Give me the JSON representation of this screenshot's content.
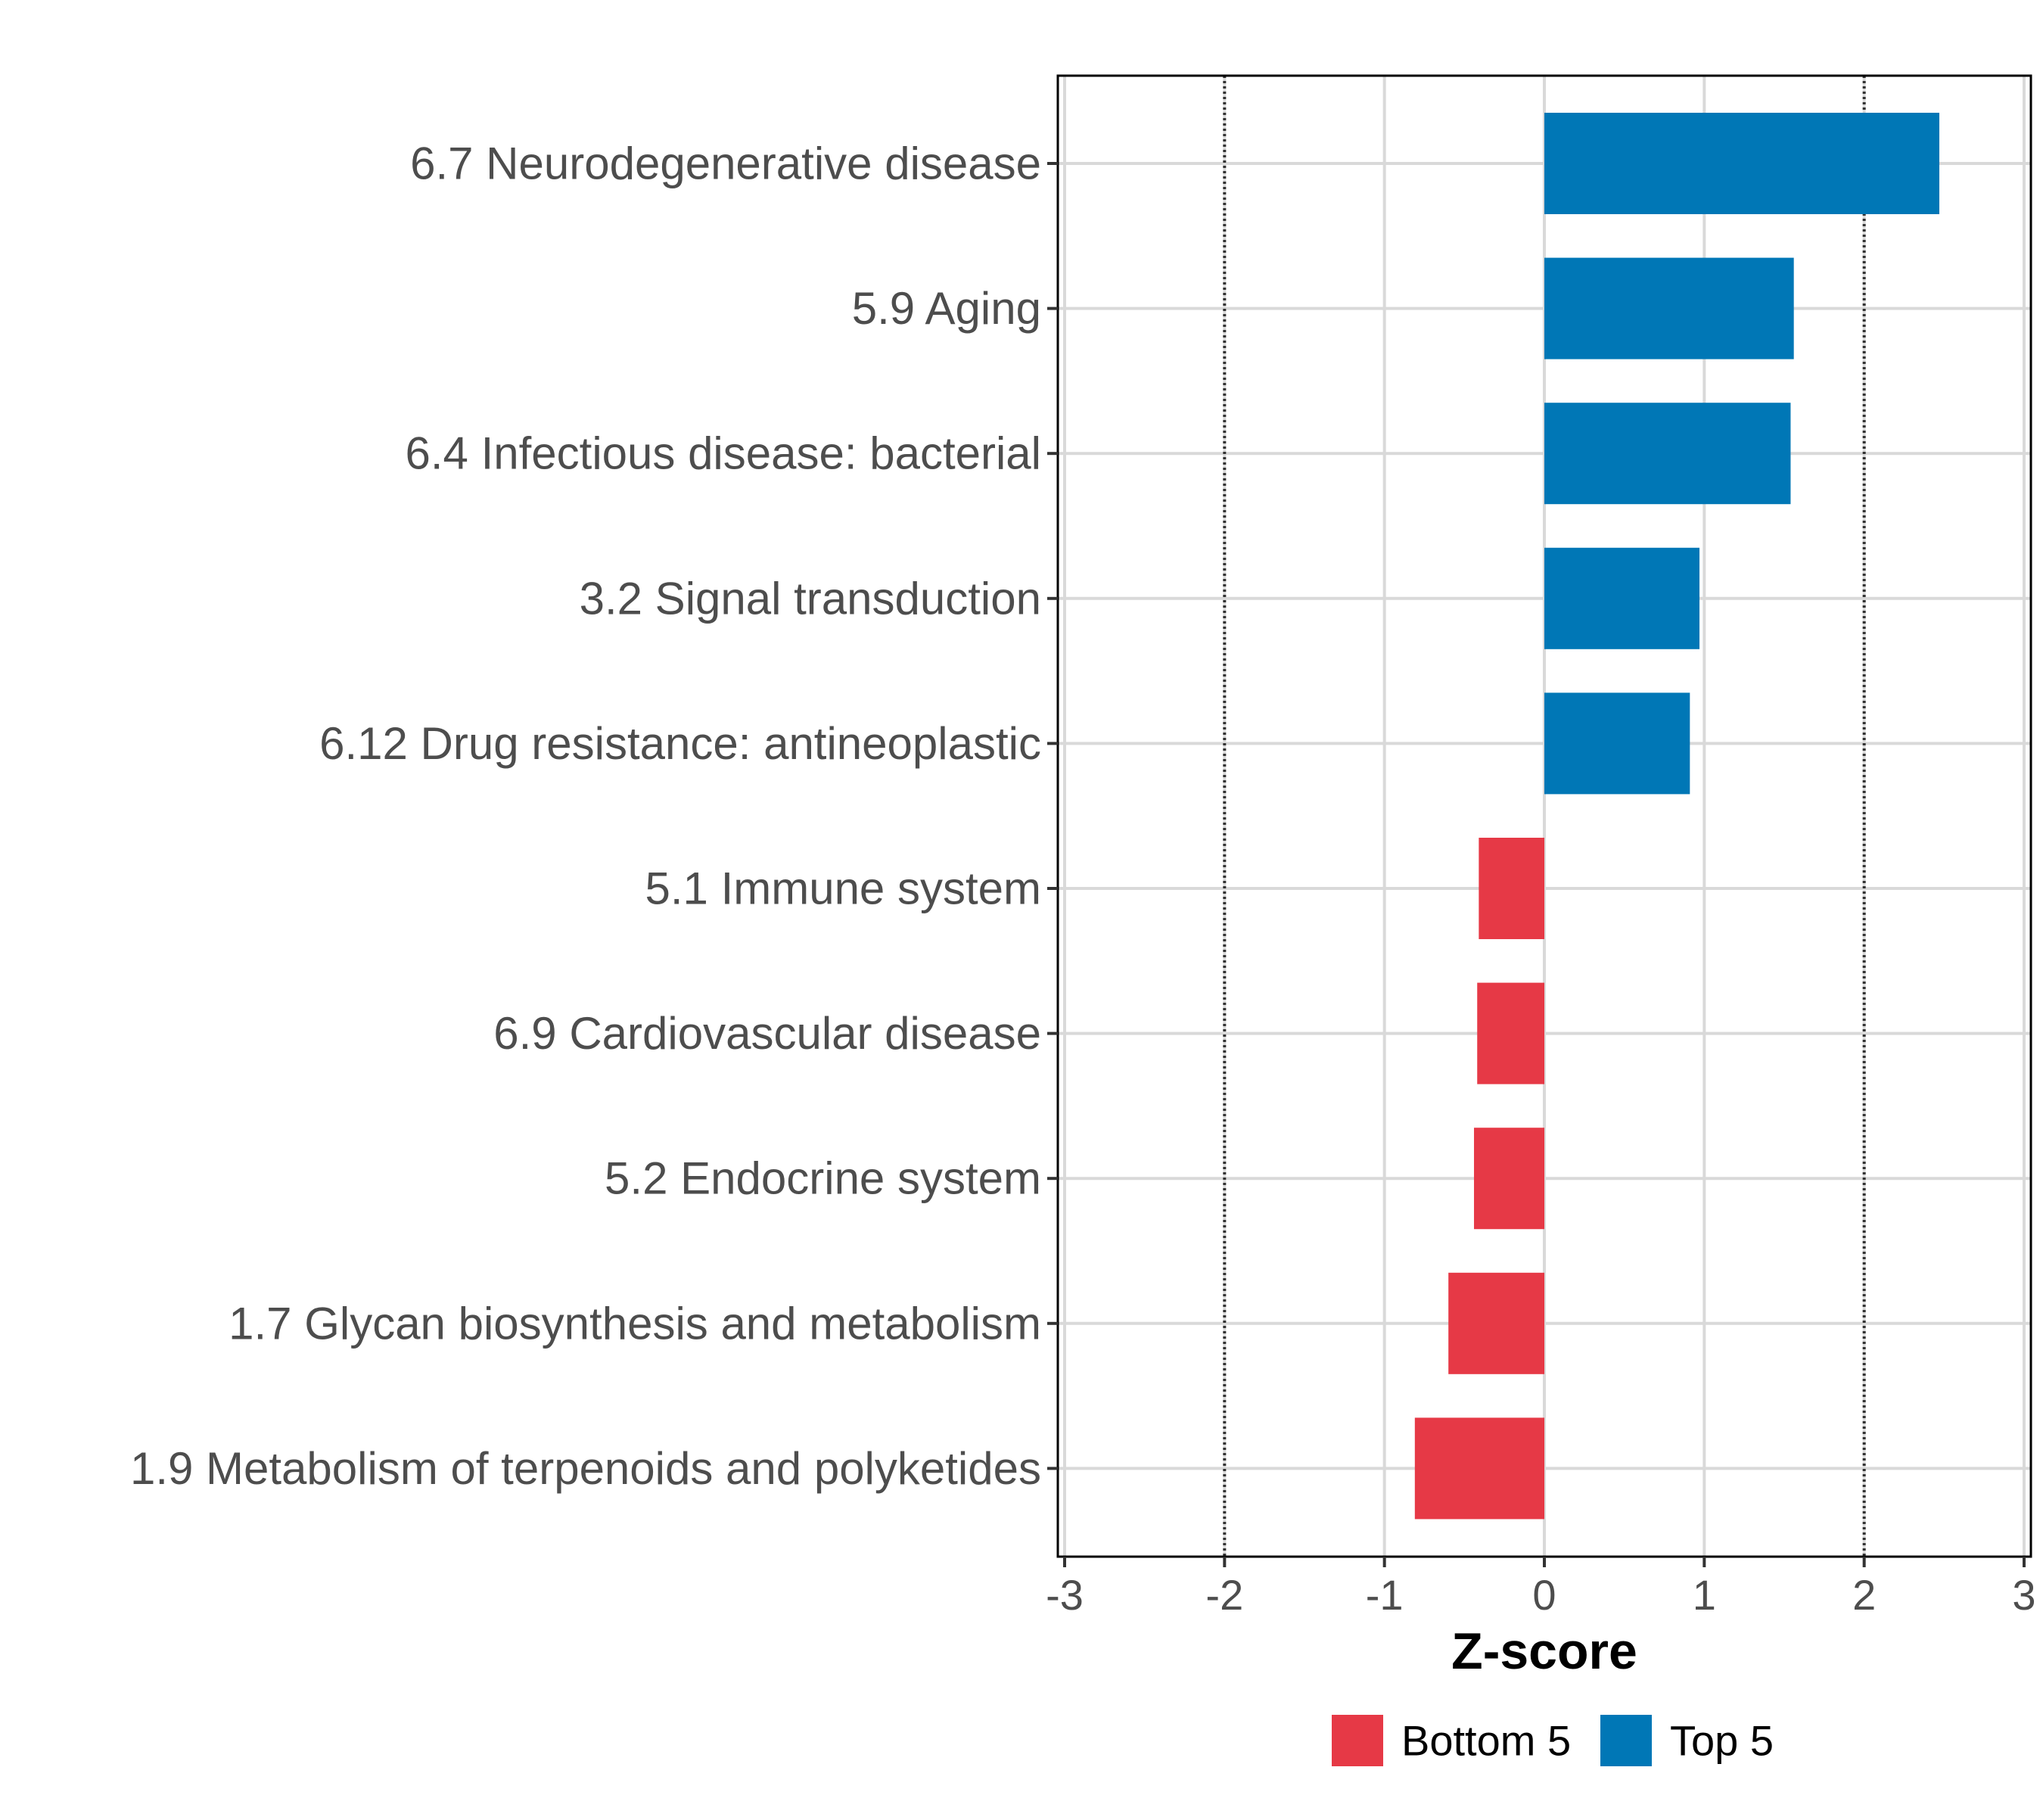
{
  "chart_data": {
    "type": "bar",
    "orientation": "horizontal",
    "categories": [
      "6.7 Neurodegenerative disease",
      "5.9 Aging",
      "6.4 Infectious disease: bacterial",
      "3.2 Signal transduction",
      "6.12 Drug resistance: antineoplastic",
      "5.1 Immune system",
      "6.9 Cardiovascular disease",
      "5.2 Endocrine system",
      "1.7 Glycan biosynthesis and metabolism",
      "1.9 Metabolism of terpenoids and polyketides"
    ],
    "values": [
      2.47,
      1.56,
      1.54,
      0.97,
      0.91,
      -0.41,
      -0.42,
      -0.44,
      -0.6,
      -0.81
    ],
    "groups": [
      "Top 5",
      "Top 5",
      "Top 5",
      "Top 5",
      "Top 5",
      "Bottom 5",
      "Bottom 5",
      "Bottom 5",
      "Bottom 5",
      "Bottom 5"
    ],
    "series": [
      {
        "name": "Bottom 5",
        "color": "#E63946"
      },
      {
        "name": "Top 5",
        "color": "#0077B6"
      }
    ],
    "title": "",
    "xlabel": "Z-score",
    "ylabel": "",
    "xlim": [
      -3,
      3
    ],
    "xticks": [
      -3,
      -2,
      -1,
      0,
      1,
      2,
      3
    ],
    "xtick_labels": [
      "-3",
      "-2",
      "-1",
      "0",
      "1",
      "2",
      "3"
    ],
    "reference_lines": [
      -2,
      2
    ],
    "grid": true,
    "legend_position": "bottom"
  }
}
